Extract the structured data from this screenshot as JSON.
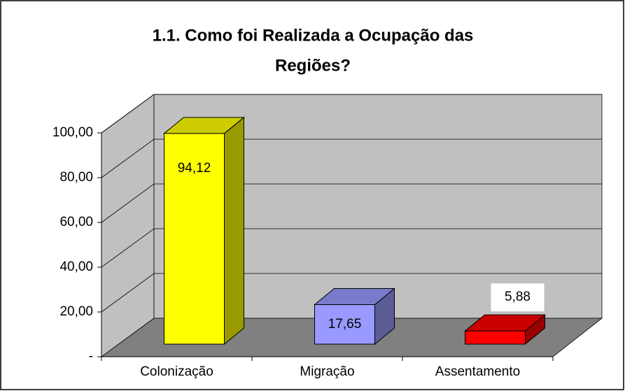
{
  "chart_data": {
    "type": "bar3d",
    "title_lines": [
      "1.1. Como foi Realizada a Ocupação das",
      "Regiões?"
    ],
    "categories": [
      "Colonização",
      "Migração",
      "Assentamento"
    ],
    "values": [
      94.12,
      17.65,
      5.88
    ],
    "value_labels": [
      "94,12",
      "17,65",
      "5,88"
    ],
    "colors": [
      "#ffff00",
      "#9999ff",
      "#ff0000"
    ],
    "ylim": [
      0,
      100
    ],
    "yticks": [
      {
        "value": 0,
        "label": "-"
      },
      {
        "value": 20,
        "label": "20,00"
      },
      {
        "value": 40,
        "label": "40,00"
      },
      {
        "value": 60,
        "label": "60,00"
      },
      {
        "value": 80,
        "label": "80,00"
      },
      {
        "value": 100,
        "label": "100,00"
      }
    ],
    "grid": true
  }
}
